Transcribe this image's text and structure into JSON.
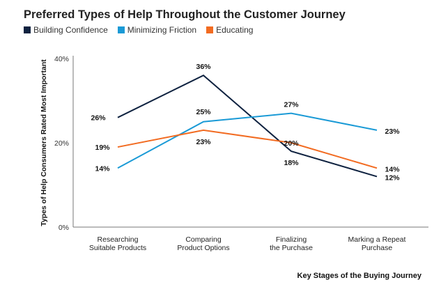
{
  "chart_data": {
    "type": "line",
    "title": "Preferred Types of Help Throughout the Customer Journey",
    "ylabel": "Types of Help Consumers Rated Most Important",
    "xlabel": "Key Stages of the Buying Journey",
    "ylim": [
      0,
      40
    ],
    "yticks": [
      "0%",
      "20%",
      "40%"
    ],
    "yticks_values": [
      0,
      20,
      40
    ],
    "categories": [
      [
        "Researching",
        "Suitable Products"
      ],
      [
        "Comparing",
        "Product Options"
      ],
      [
        "Finalizing",
        "the Purchase"
      ],
      [
        "Marking a Repeat",
        "Purchase"
      ]
    ],
    "series": [
      {
        "name": "Building Confidence",
        "color": "#0f2240",
        "values": [
          26,
          36,
          18,
          12
        ],
        "labels": [
          "26%",
          "36%",
          "18%",
          "12%"
        ]
      },
      {
        "name": "Minimizing Friction",
        "color": "#1a9ad6",
        "values": [
          14,
          25,
          27,
          23
        ],
        "labels": [
          "14%",
          "25%",
          "27%",
          "23%"
        ]
      },
      {
        "name": "Educating",
        "color": "#f26b21",
        "values": [
          19,
          23,
          20,
          14
        ],
        "labels": [
          "19%",
          "23%",
          "20%",
          "14%"
        ]
      }
    ]
  }
}
